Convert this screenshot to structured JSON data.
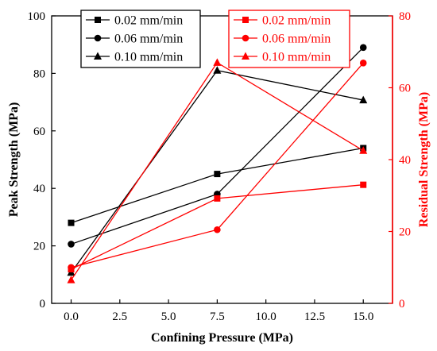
{
  "chart_data": {
    "type": "line",
    "x": [
      0,
      7.5,
      15
    ],
    "x_ticks": [
      0.0,
      2.5,
      5.0,
      7.5,
      10.0,
      12.5,
      15.0
    ],
    "x_tick_labels": [
      "0.0",
      "2.5",
      "5.0",
      "7.5",
      "10.0",
      "12.5",
      "15.0"
    ],
    "xlim": [
      -1.0,
      16.5
    ],
    "xlabel": "Confining Pressure (MPa)",
    "y_left": {
      "label": "Peak Strength (MPa)",
      "lim": [
        0,
        100
      ],
      "ticks": [
        0,
        20,
        40,
        60,
        80,
        100
      ],
      "color": "#000000"
    },
    "y_right": {
      "label": "Residual Strength (MPa)",
      "lim": [
        0,
        80
      ],
      "ticks": [
        0,
        20,
        40,
        60,
        80
      ],
      "color": "#ff0000"
    },
    "series": [
      {
        "name": "0.02 mm/min",
        "axis": "left",
        "color": "#000000",
        "marker": "square",
        "values": [
          28.0,
          45.0,
          54.0
        ]
      },
      {
        "name": "0.06 mm/min",
        "axis": "left",
        "color": "#000000",
        "marker": "circle",
        "values": [
          20.6,
          38.0,
          89.0
        ]
      },
      {
        "name": "0.10 mm/min",
        "axis": "left",
        "color": "#000000",
        "marker": "triangle",
        "values": [
          10.7,
          81.0,
          70.7
        ]
      },
      {
        "name": "0.02 mm/min",
        "axis": "right",
        "color": "#ff0000",
        "marker": "square",
        "values": [
          9.5,
          29.2,
          33.0
        ]
      },
      {
        "name": "0.06 mm/min",
        "axis": "right",
        "color": "#ff0000",
        "marker": "circle",
        "values": [
          10.0,
          20.5,
          66.9
        ]
      },
      {
        "name": "0.10 mm/min",
        "axis": "right",
        "color": "#ff0000",
        "marker": "triangle",
        "values": [
          6.5,
          67.0,
          42.5
        ]
      }
    ],
    "legends": [
      {
        "position": "top-left",
        "color": "#000000",
        "entries": [
          "0.02 mm/min",
          "0.06 mm/min",
          "0.10 mm/min"
        ]
      },
      {
        "position": "top-right",
        "color": "#ff0000",
        "entries": [
          "0.02 mm/min",
          "0.06 mm/min",
          "0.10 mm/min"
        ]
      }
    ],
    "grid": false
  }
}
